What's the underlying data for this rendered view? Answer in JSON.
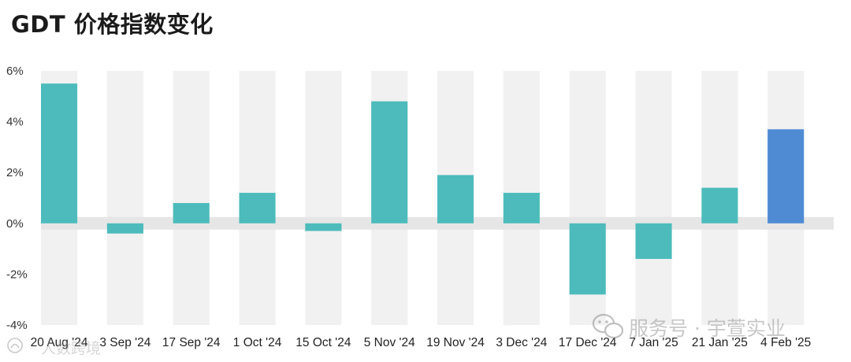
{
  "title": "GDT 价格指数变化",
  "chart_data": {
    "type": "bar",
    "title": "GDT 价格指数变化",
    "xlabel": "",
    "ylabel": "",
    "categories": [
      "20 Aug '24",
      "3 Sep '24",
      "17 Sep '24",
      "1 Oct '24",
      "15 Oct '24",
      "5 Nov '24",
      "19 Nov '24",
      "3 Dec '24",
      "17 Dec '24",
      "7 Jan '25",
      "21 Jan '25",
      "4 Feb '25"
    ],
    "values": [
      5.5,
      -0.4,
      0.8,
      1.2,
      -0.3,
      4.8,
      1.9,
      1.2,
      -2.8,
      -1.4,
      1.4,
      3.7
    ],
    "ylim": [
      -4,
      6
    ],
    "yticks": [
      "6%",
      "4%",
      "2%",
      "0%",
      "-2%",
      "-4%"
    ],
    "ytick_values": [
      6,
      4,
      2,
      0,
      -2,
      -4
    ],
    "colors": {
      "default": "#4dbbbb",
      "highlight": "#4e8bd3",
      "band": "#f1f1f1",
      "zero_band": "#e6e6e6"
    },
    "highlight_index": 11,
    "grid": false,
    "legend": "none"
  },
  "watermarks": {
    "right": "服务号 · 宇萱实业",
    "left": "人数跨境"
  }
}
